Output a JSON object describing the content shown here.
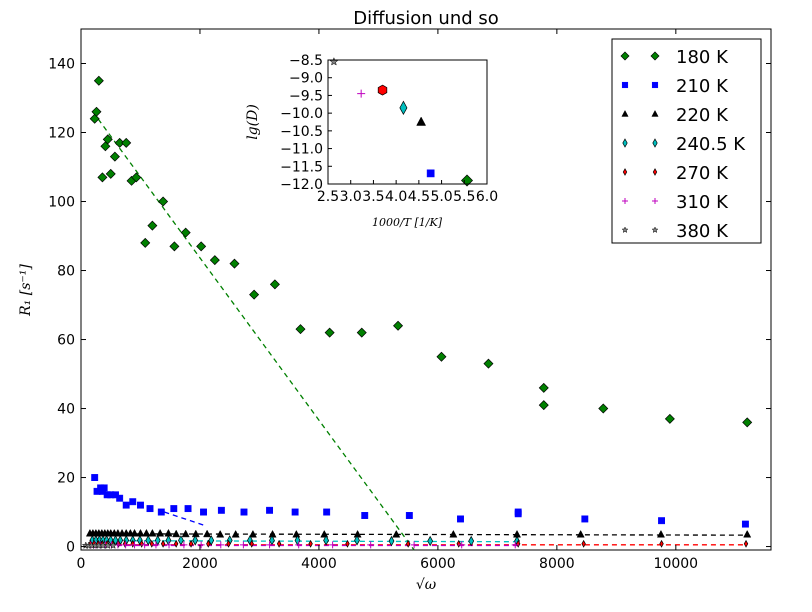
{
  "chart_data": [
    {
      "type": "scatter",
      "title": "Diffusion und so",
      "xlabel": "√ω",
      "ylabel": "R₁ [s⁻¹]",
      "xlim": [
        0,
        11600
      ],
      "ylim": [
        -1,
        150
      ],
      "xticks": [
        "0",
        "2000",
        "4000",
        "6000",
        "8000",
        "10000"
      ],
      "yticks": [
        "0",
        "20",
        "40",
        "60",
        "80",
        "100",
        "120",
        "140"
      ],
      "grid": false,
      "legend_position": "top-right",
      "series": [
        {
          "name": "180 K",
          "marker": "diamond",
          "color": "#008000",
          "x": [
            230,
            260,
            300,
            360,
            410,
            450,
            500,
            570,
            650,
            760,
            850,
            930,
            1080,
            1200,
            1380,
            1570,
            1760,
            2020,
            2250,
            2580,
            2910,
            3260,
            3690,
            4180,
            4720,
            5330,
            6060,
            6850,
            7780,
            7780,
            8780,
            9900,
            11200
          ],
          "y": [
            124,
            126,
            135,
            107,
            116,
            118,
            108,
            113,
            117,
            117,
            106,
            107,
            88,
            93,
            100,
            87,
            91,
            87,
            83,
            82,
            73,
            76,
            63,
            62,
            62,
            64,
            55,
            53,
            46,
            41,
            40,
            37,
            36
          ]
        },
        {
          "name": "210 K",
          "marker": "square",
          "color": "#0000ff",
          "x": [
            230,
            270,
            330,
            360,
            390,
            440,
            500,
            580,
            650,
            760,
            870,
            1000,
            1160,
            1350,
            1560,
            1800,
            2060,
            2360,
            2740,
            3170,
            3600,
            4130,
            4770,
            5520,
            6380,
            7350,
            7350,
            8470,
            9760,
            11170
          ],
          "y": [
            20,
            16,
            17,
            16,
            17,
            15,
            15,
            15,
            14,
            12,
            13,
            12,
            11,
            10,
            11,
            11,
            10,
            10.5,
            10,
            10.5,
            10,
            10,
            9,
            9,
            8,
            10,
            9.5,
            8,
            7.5,
            6.5
          ]
        },
        {
          "name": "220 K",
          "marker": "triangle",
          "color": "#000000",
          "x": [
            150,
            200,
            250,
            300,
            350,
            400,
            450,
            500,
            560,
            620,
            690,
            760,
            830,
            900,
            1000,
            1100,
            1200,
            1330,
            1470,
            1600,
            1760,
            1930,
            2120,
            2340,
            2600,
            2890,
            3220,
            3620,
            4090,
            4650,
            5300,
            6260,
            7330,
            8400,
            9750,
            11200
          ],
          "y": [
            3.8,
            3.8,
            3.8,
            3.8,
            3.8,
            3.8,
            3.8,
            3.8,
            3.8,
            3.8,
            3.8,
            3.8,
            3.8,
            3.8,
            3.8,
            3.8,
            3.8,
            3.8,
            3.8,
            3.6,
            3.6,
            3.6,
            3.6,
            3.5,
            3.5,
            3.5,
            3.5,
            3.5,
            3.5,
            3.5,
            3.5,
            3.5,
            3.5,
            3.5,
            3.5,
            3.5
          ]
        },
        {
          "name": "240.5 K",
          "marker": "thin_diamond",
          "color": "#00bfbf",
          "x": [
            190,
            250,
            310,
            370,
            430,
            500,
            580,
            660,
            760,
            870,
            990,
            1130,
            1290,
            1470,
            1680,
            1920,
            2190,
            2500,
            2840,
            3210,
            3640,
            4120,
            4640,
            5220,
            5870,
            6560,
            7330
          ],
          "y": [
            1.8,
            1.8,
            1.8,
            1.8,
            1.8,
            1.8,
            1.8,
            1.8,
            1.8,
            1.8,
            1.8,
            1.8,
            1.8,
            1.8,
            1.8,
            1.8,
            1.8,
            1.8,
            1.8,
            1.8,
            1.8,
            1.8,
            1.8,
            1.6,
            1.6,
            1.6,
            1.6
          ]
        },
        {
          "name": "270 K",
          "marker": "thin_diamond",
          "color": "#ff0000",
          "x": [
            160,
            220,
            290,
            360,
            440,
            530,
            630,
            740,
            870,
            1020,
            1190,
            1380,
            1600,
            1850,
            2140,
            2480,
            2870,
            3330,
            3860,
            4480,
            5500,
            6350,
            7350,
            8450,
            9760,
            11180
          ],
          "y": [
            0.8,
            0.8,
            0.8,
            0.8,
            0.8,
            0.8,
            0.8,
            0.8,
            0.8,
            0.8,
            0.8,
            0.8,
            0.8,
            0.8,
            0.8,
            0.8,
            0.8,
            0.8,
            0.8,
            0.8,
            0.8,
            0.8,
            0.8,
            0.8,
            0.8,
            0.8
          ]
        },
        {
          "name": "310 K",
          "marker": "plus",
          "color": "#bf00bf",
          "x": [
            170,
            240,
            320,
            410,
            510,
            620,
            750,
            900,
            1070,
            1260,
            1480,
            1730,
            2020,
            2350,
            2730,
            3170,
            3660,
            4230,
            4870,
            5600,
            6400,
            7300
          ],
          "y": [
            0.5,
            0.5,
            0.5,
            0.5,
            0.5,
            0.5,
            0.5,
            0.5,
            0.5,
            0.5,
            0.5,
            0.5,
            0.5,
            0.5,
            0.5,
            0.5,
            0.5,
            0.5,
            0.5,
            0.5,
            0.5,
            0.5
          ]
        },
        {
          "name": "380 K",
          "marker": "star",
          "color": "#7f7f7f",
          "x": [
            80,
            130,
            180,
            240,
            300,
            370,
            450,
            540
          ],
          "y": [
            0.3,
            0.3,
            0.3,
            0.3,
            0.3,
            0.3,
            0.3,
            0.3
          ]
        }
      ],
      "fit_lines": [
        {
          "color": "#008000",
          "x": [
            200,
            5600
          ],
          "y": [
            126,
            -1
          ]
        },
        {
          "color": "#0000ff",
          "x": [
            1400,
            2100
          ],
          "y": [
            10,
            6
          ]
        },
        {
          "color": "#000000",
          "x": [
            150,
            11200
          ],
          "y": [
            3.7,
            3.3
          ]
        },
        {
          "color": "#00bfbf",
          "x": [
            150,
            7400
          ],
          "y": [
            1.7,
            1.4
          ]
        },
        {
          "color": "#ff0000",
          "x": [
            150,
            11200
          ],
          "y": [
            0.5,
            0.5
          ]
        },
        {
          "color": "#bf00bf",
          "x": [
            150,
            7400
          ],
          "y": [
            0.3,
            0.3
          ]
        }
      ]
    },
    {
      "type": "scatter",
      "title": "",
      "xlabel": "1000/T [1/K]",
      "ylabel": "lg(D)",
      "xlim": [
        2.5,
        6.0
      ],
      "ylim": [
        -12.0,
        -8.5
      ],
      "xticks": [
        "2.5",
        "3.0",
        "3.5",
        "4.0",
        "4.5",
        "5.0",
        "5.5",
        "6.0"
      ],
      "yticks": [
        "-8.5",
        "-9.0",
        "-9.5",
        "-10.0",
        "-10.5",
        "-11.0",
        "-11.5",
        "-12.0"
      ],
      "points": [
        {
          "series": "380 K",
          "x": 2.63,
          "y": -8.55,
          "marker": "star",
          "color": "#7f7f7f"
        },
        {
          "series": "310 K",
          "x": 3.23,
          "y": -9.45,
          "marker": "plus",
          "color": "#bf00bf"
        },
        {
          "series": "270 K",
          "x": 3.7,
          "y": -9.35,
          "marker": "hexagon",
          "color": "#ff0000"
        },
        {
          "series": "240.5 K",
          "x": 4.16,
          "y": -9.85,
          "marker": "thin_diamond",
          "color": "#00bfbf"
        },
        {
          "series": "220 K",
          "x": 4.55,
          "y": -10.25,
          "marker": "triangle",
          "color": "#000000"
        },
        {
          "series": "210 K",
          "x": 4.76,
          "y": -11.7,
          "marker": "square",
          "color": "#0000ff"
        },
        {
          "series": "180 K",
          "x": 5.56,
          "y": -11.9,
          "marker": "diamond",
          "color": "#008000"
        }
      ]
    }
  ]
}
